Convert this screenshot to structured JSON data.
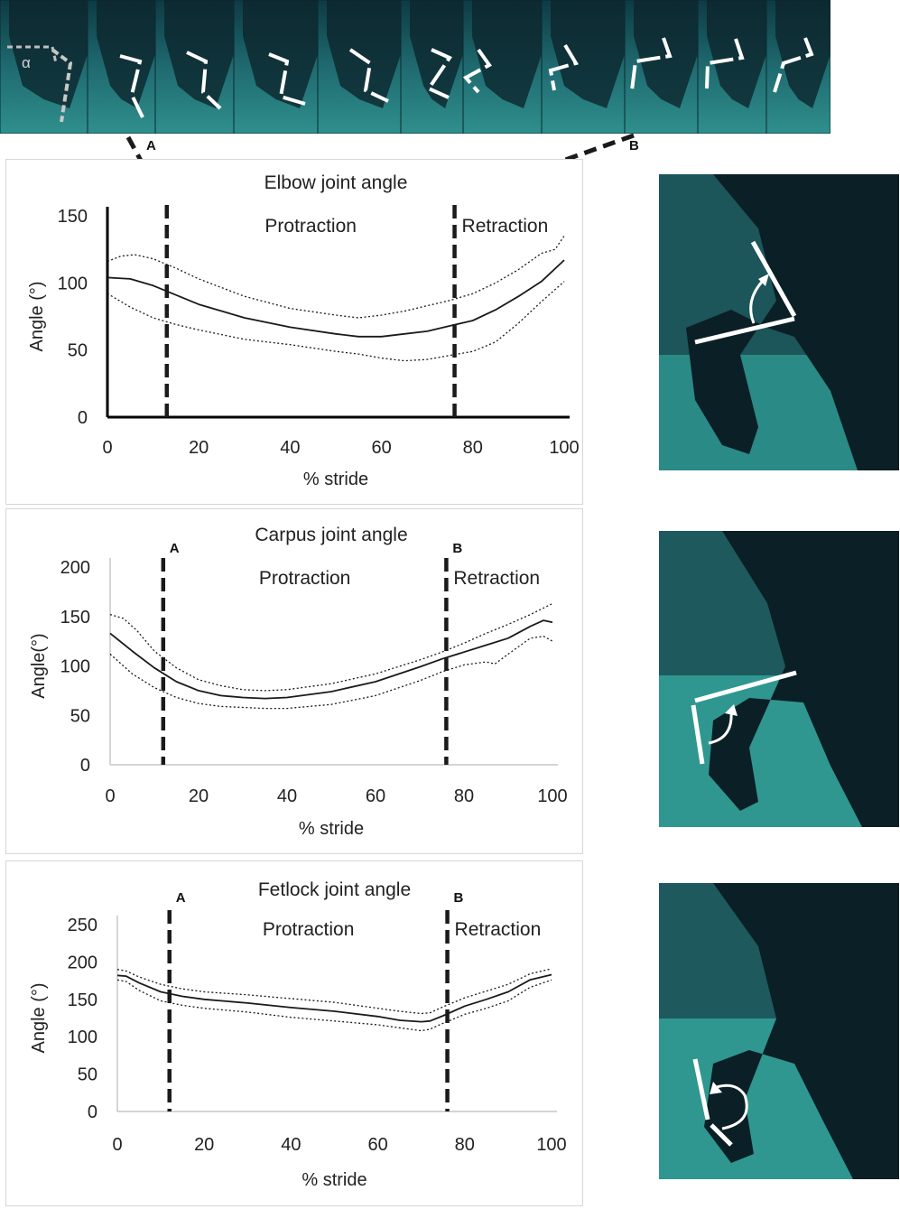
{
  "figure": {
    "marker_a": "A",
    "marker_b": "B",
    "alpha_symbol": "α"
  },
  "chart_data": [
    {
      "type": "line",
      "title": "Elbow joint angle",
      "xlabel": "% stride",
      "ylabel": "Angle (°)",
      "xlim": [
        0,
        100
      ],
      "ylim": [
        0,
        150
      ],
      "xticks": [
        0,
        20,
        40,
        60,
        80,
        100
      ],
      "yticks": [
        0,
        50,
        100,
        150
      ],
      "phase_labels": [
        "Protraction",
        "Retraction"
      ],
      "phase_markers": [
        {
          "label": "A",
          "x": 13
        },
        {
          "label": "B",
          "x": 76
        }
      ],
      "marker_labels_shown": false,
      "axis_color": "#000000",
      "series": [
        {
          "role": "mean",
          "style": "solid",
          "x": [
            0,
            5,
            10,
            15,
            20,
            30,
            40,
            50,
            55,
            60,
            65,
            70,
            75,
            80,
            85,
            90,
            95,
            100
          ],
          "y": [
            104,
            103,
            98,
            91,
            84,
            74,
            67,
            62,
            60,
            60,
            62,
            64,
            68,
            72,
            80,
            90,
            101,
            117
          ]
        },
        {
          "role": "upper",
          "style": "dotted",
          "x": [
            0,
            3,
            6,
            10,
            15,
            20,
            30,
            40,
            50,
            55,
            60,
            65,
            70,
            75,
            80,
            85,
            90,
            95,
            98,
            100
          ],
          "y": [
            116,
            120,
            121,
            118,
            111,
            103,
            90,
            81,
            76,
            74,
            76,
            79,
            83,
            87,
            92,
            100,
            110,
            122,
            125,
            135
          ]
        },
        {
          "role": "lower",
          "style": "dotted",
          "x": [
            0,
            5,
            10,
            15,
            20,
            30,
            40,
            50,
            55,
            60,
            65,
            70,
            75,
            80,
            85,
            90,
            95,
            100
          ],
          "y": [
            92,
            82,
            74,
            69,
            65,
            58,
            54,
            49,
            47,
            44,
            42,
            43,
            46,
            49,
            56,
            70,
            86,
            101
          ]
        }
      ]
    },
    {
      "type": "line",
      "title": "Carpus joint angle",
      "xlabel": "% stride",
      "ylabel": "Angle(°)",
      "xlim": [
        0,
        100
      ],
      "ylim": [
        0,
        200
      ],
      "xticks": [
        0,
        20,
        40,
        60,
        80,
        100
      ],
      "yticks": [
        0,
        50,
        100,
        150,
        200
      ],
      "phase_labels": [
        "Protraction",
        "Retraction"
      ],
      "phase_markers": [
        {
          "label": "A",
          "x": 12
        },
        {
          "label": "B",
          "x": 76
        }
      ],
      "marker_labels_shown": true,
      "axis_color": "#bbbbbb",
      "series": [
        {
          "role": "mean",
          "style": "solid",
          "x": [
            0,
            5,
            10,
            15,
            20,
            25,
            30,
            35,
            40,
            50,
            60,
            70,
            75,
            80,
            85,
            90,
            95,
            98,
            100
          ],
          "y": [
            133,
            115,
            98,
            84,
            75,
            70,
            68,
            67,
            68,
            74,
            84,
            99,
            107,
            114,
            121,
            128,
            140,
            146,
            144
          ]
        },
        {
          "role": "upper",
          "style": "dotted",
          "x": [
            0,
            3,
            6,
            10,
            15,
            20,
            25,
            30,
            35,
            40,
            50,
            60,
            70,
            75,
            80,
            85,
            90,
            95,
            100
          ],
          "y": [
            152,
            148,
            136,
            115,
            98,
            86,
            80,
            76,
            75,
            76,
            82,
            92,
            106,
            114,
            123,
            133,
            142,
            152,
            163
          ]
        },
        {
          "role": "lower",
          "style": "dotted",
          "x": [
            0,
            5,
            10,
            15,
            20,
            25,
            30,
            35,
            40,
            50,
            60,
            70,
            75,
            80,
            85,
            87,
            90,
            95,
            98,
            100
          ],
          "y": [
            112,
            92,
            78,
            68,
            62,
            59,
            58,
            57,
            57,
            61,
            70,
            85,
            94,
            101,
            104,
            102,
            112,
            128,
            130,
            125
          ]
        }
      ]
    },
    {
      "type": "line",
      "title": "Fetlock joint angle",
      "xlabel": "% stride",
      "ylabel": "Angle (°)",
      "xlim": [
        0,
        100
      ],
      "ylim": [
        0,
        250
      ],
      "xticks": [
        0,
        20,
        40,
        60,
        80,
        100
      ],
      "yticks": [
        0,
        50,
        100,
        150,
        200,
        250
      ],
      "phase_labels": [
        "Protraction",
        "Retraction"
      ],
      "phase_markers": [
        {
          "label": "A",
          "x": 12
        },
        {
          "label": "B",
          "x": 76
        }
      ],
      "marker_labels_shown": true,
      "axis_color": "#bbbbbb",
      "series": [
        {
          "role": "mean",
          "style": "solid",
          "x": [
            0,
            2,
            5,
            10,
            15,
            20,
            30,
            40,
            50,
            60,
            65,
            70,
            72,
            75,
            80,
            85,
            90,
            95,
            100
          ],
          "y": [
            182,
            181,
            172,
            160,
            154,
            150,
            145,
            139,
            134,
            127,
            122,
            120,
            121,
            128,
            141,
            150,
            160,
            176,
            183
          ]
        },
        {
          "role": "upper",
          "style": "dotted",
          "x": [
            0,
            2,
            5,
            10,
            15,
            20,
            30,
            40,
            50,
            60,
            65,
            70,
            72,
            75,
            80,
            85,
            90,
            95,
            100
          ],
          "y": [
            190,
            188,
            180,
            170,
            164,
            160,
            156,
            151,
            146,
            138,
            134,
            131,
            132,
            140,
            152,
            161,
            170,
            184,
            191
          ]
        },
        {
          "role": "lower",
          "style": "dotted",
          "x": [
            0,
            2,
            5,
            10,
            15,
            20,
            30,
            40,
            50,
            60,
            65,
            70,
            72,
            75,
            80,
            85,
            90,
            95,
            100
          ],
          "y": [
            176,
            174,
            162,
            148,
            142,
            138,
            133,
            126,
            121,
            116,
            112,
            108,
            110,
            118,
            130,
            138,
            148,
            166,
            176
          ]
        }
      ]
    }
  ]
}
